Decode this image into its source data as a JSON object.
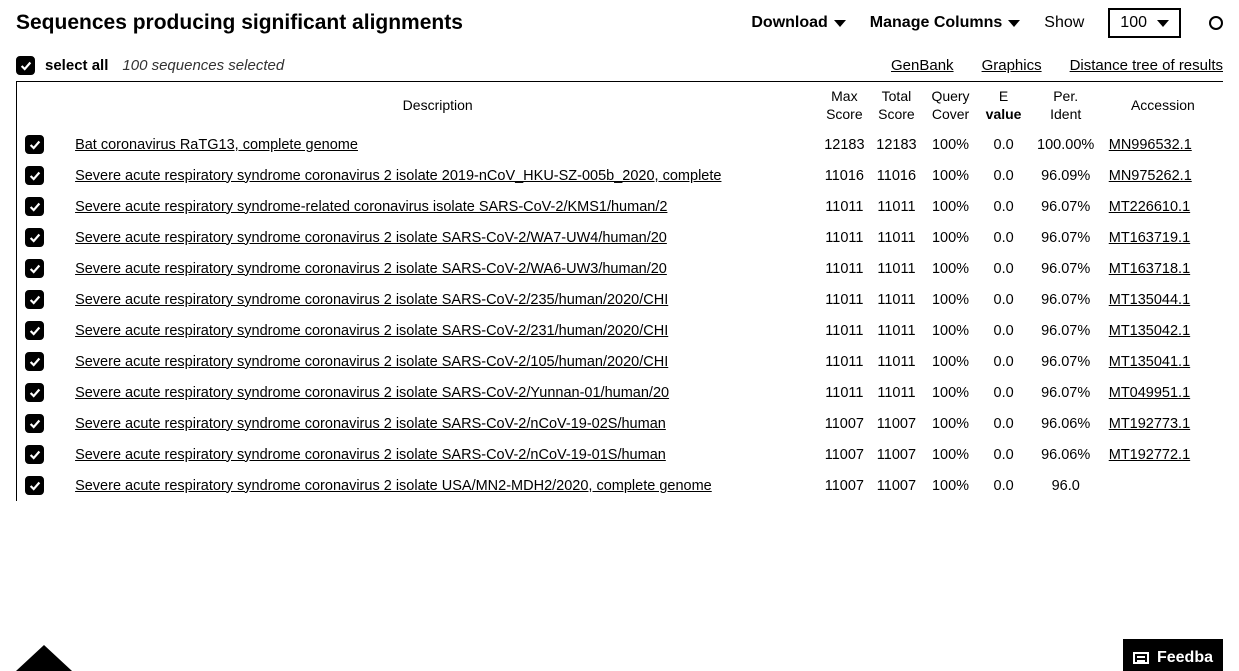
{
  "header": {
    "title": "Sequences producing significant alignments",
    "download_label": "Download",
    "manage_label": "Manage Columns",
    "show_label": "Show",
    "show_value": "100"
  },
  "action": {
    "select_all": "select all",
    "selected_text": "100 sequences selected",
    "links": {
      "genbank": "GenBank",
      "graphics": "Graphics",
      "distance": "Distance tree of results"
    }
  },
  "columns": {
    "description": "Description",
    "max_score_l1": "Max",
    "max_score_l2": "Score",
    "total_l1": "Total",
    "total_l2": "Score",
    "query_l1": "Query",
    "query_l2": "Cover",
    "e_l1": "E",
    "e_l2": "value",
    "per_l1": "Per.",
    "per_l2": "Ident",
    "accession": "Accession"
  },
  "rows": [
    {
      "desc": "Bat coronavirus RaTG13, complete genome",
      "max": "12183",
      "total": "12183",
      "cover": "100%",
      "e": "0.0",
      "ident": "100.00%",
      "acc": "MN996532.1"
    },
    {
      "desc": "Severe acute respiratory syndrome coronavirus 2 isolate 2019-nCoV_HKU-SZ-005b_2020, complete",
      "max": "11016",
      "total": "11016",
      "cover": "100%",
      "e": "0.0",
      "ident": "96.09%",
      "acc": "MN975262.1"
    },
    {
      "desc": "Severe acute respiratory syndrome-related coronavirus isolate SARS-CoV-2/KMS1/human/2",
      "max": "11011",
      "total": "11011",
      "cover": "100%",
      "e": "0.0",
      "ident": "96.07%",
      "acc": "MT226610.1"
    },
    {
      "desc": "Severe acute respiratory syndrome coronavirus 2 isolate SARS-CoV-2/WA7-UW4/human/20",
      "max": "11011",
      "total": "11011",
      "cover": "100%",
      "e": "0.0",
      "ident": "96.07%",
      "acc": "MT163719.1"
    },
    {
      "desc": "Severe acute respiratory syndrome coronavirus 2 isolate SARS-CoV-2/WA6-UW3/human/20",
      "max": "11011",
      "total": "11011",
      "cover": "100%",
      "e": "0.0",
      "ident": "96.07%",
      "acc": "MT163718.1"
    },
    {
      "desc": "Severe acute respiratory syndrome coronavirus 2 isolate SARS-CoV-2/235/human/2020/CHI",
      "max": "11011",
      "total": "11011",
      "cover": "100%",
      "e": "0.0",
      "ident": "96.07%",
      "acc": "MT135044.1"
    },
    {
      "desc": "Severe acute respiratory syndrome coronavirus 2 isolate SARS-CoV-2/231/human/2020/CHI",
      "max": "11011",
      "total": "11011",
      "cover": "100%",
      "e": "0.0",
      "ident": "96.07%",
      "acc": "MT135042.1"
    },
    {
      "desc": "Severe acute respiratory syndrome coronavirus 2 isolate SARS-CoV-2/105/human/2020/CHI",
      "max": "11011",
      "total": "11011",
      "cover": "100%",
      "e": "0.0",
      "ident": "96.07%",
      "acc": "MT135041.1"
    },
    {
      "desc": "Severe acute respiratory syndrome coronavirus 2 isolate SARS-CoV-2/Yunnan-01/human/20",
      "max": "11011",
      "total": "11011",
      "cover": "100%",
      "e": "0.0",
      "ident": "96.07%",
      "acc": "MT049951.1"
    },
    {
      "desc": "Severe acute respiratory syndrome coronavirus 2 isolate SARS-CoV-2/nCoV-19-02S/human",
      "max": "11007",
      "total": "11007",
      "cover": "100%",
      "e": "0.0",
      "ident": "96.06%",
      "acc": "MT192773.1"
    },
    {
      "desc": "Severe acute respiratory syndrome coronavirus 2 isolate SARS-CoV-2/nCoV-19-01S/human",
      "max": "11007",
      "total": "11007",
      "cover": "100%",
      "e": "0.0",
      "ident": "96.06%",
      "acc": "MT192772.1"
    },
    {
      "desc": "Severe acute respiratory syndrome coronavirus 2 isolate USA/MN2-MDH2/2020, complete genome",
      "max": "11007",
      "total": "11007",
      "cover": "100%",
      "e": "0.0",
      "ident": "96.0",
      "acc": ""
    }
  ],
  "feedback_label": "Feedba"
}
